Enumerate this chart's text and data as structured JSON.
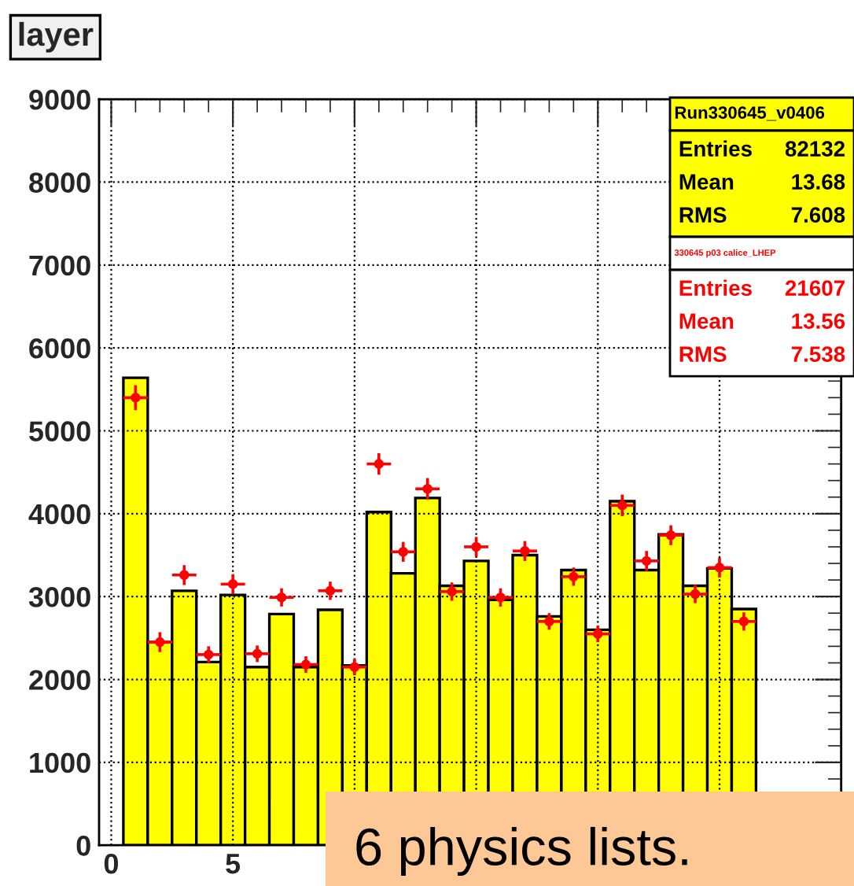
{
  "chart_data": {
    "type": "histogram",
    "title": "layer",
    "bins": [
      0.5,
      1.5,
      2.5,
      3.5,
      4.5,
      5.5,
      6.5,
      7.5,
      8.5,
      9.5,
      10.5,
      11.5,
      12.5,
      13.5,
      14.5,
      15.5,
      16.5,
      17.5,
      18.5,
      19.5,
      20.5,
      21.5,
      22.5,
      23.5,
      24.5,
      25.5,
      26.5
    ],
    "series": [
      {
        "name": "Run330645_v0406",
        "color": "#ffff00",
        "values": [
          5640,
          2450,
          3070,
          2210,
          3020,
          2150,
          2790,
          2150,
          2840,
          2170,
          4020,
          3280,
          4190,
          3130,
          3430,
          2960,
          3500,
          2760,
          3320,
          2600,
          4150,
          3320,
          3750,
          3130,
          3340,
          2850
        ]
      },
      {
        "type": "scatter",
        "name": "330645 p03 calice_LHEP",
        "color": "#ff0000",
        "marker": "circle",
        "x": [
          1,
          2,
          3,
          4,
          5,
          6,
          7,
          8,
          9,
          10,
          11,
          12,
          13,
          14,
          15,
          16,
          17,
          18,
          19,
          20,
          21,
          22,
          23,
          24,
          25,
          26
        ],
        "values": [
          5400,
          2450,
          3260,
          2300,
          3150,
          2310,
          2990,
          2180,
          3070,
          2150,
          4600,
          3540,
          4300,
          3060,
          3600,
          2990,
          3550,
          2700,
          3240,
          2550,
          4100,
          3430,
          3740,
          3030,
          3350,
          2700
        ],
        "errors": [
          150,
          120,
          120,
          100,
          120,
          100,
          110,
          100,
          110,
          100,
          130,
          120,
          130,
          110,
          120,
          110,
          120,
          100,
          110,
          100,
          130,
          120,
          120,
          110,
          120,
          110
        ],
        "xerrors": [
          0.5,
          0.5,
          0.5,
          0.5,
          0.5,
          0.5,
          0.5,
          0.5,
          0.5,
          0.5,
          0.5,
          0.5,
          0.5,
          0.5,
          0.5,
          0.5,
          0.5,
          0.5,
          0.5,
          0.5,
          0.5,
          0.5,
          0.5,
          0.5,
          0.5,
          0.5
        ]
      }
    ],
    "xlim": [
      -0.5,
      30
    ],
    "ylim": [
      0,
      9000
    ],
    "xticks": [
      0,
      5,
      {
        "value": 10,
        "label": null
      },
      {
        "value": 15,
        "label": null
      },
      {
        "value": 20,
        "label": null
      },
      {
        "value": 25,
        "label": null
      },
      {
        "value": 30,
        "label": null
      }
    ],
    "yticks": [
      0,
      1000,
      2000,
      3000,
      4000,
      5000,
      6000,
      7000,
      8000,
      9000
    ],
    "grid": true,
    "legend": "top right",
    "annotations": [
      "Entries 82132",
      "Mean 13.68",
      "RMS 7.608",
      "Entries 21607",
      "Mean 13.56",
      "RMS 7.538",
      "6 physics lists."
    ]
  }
}
